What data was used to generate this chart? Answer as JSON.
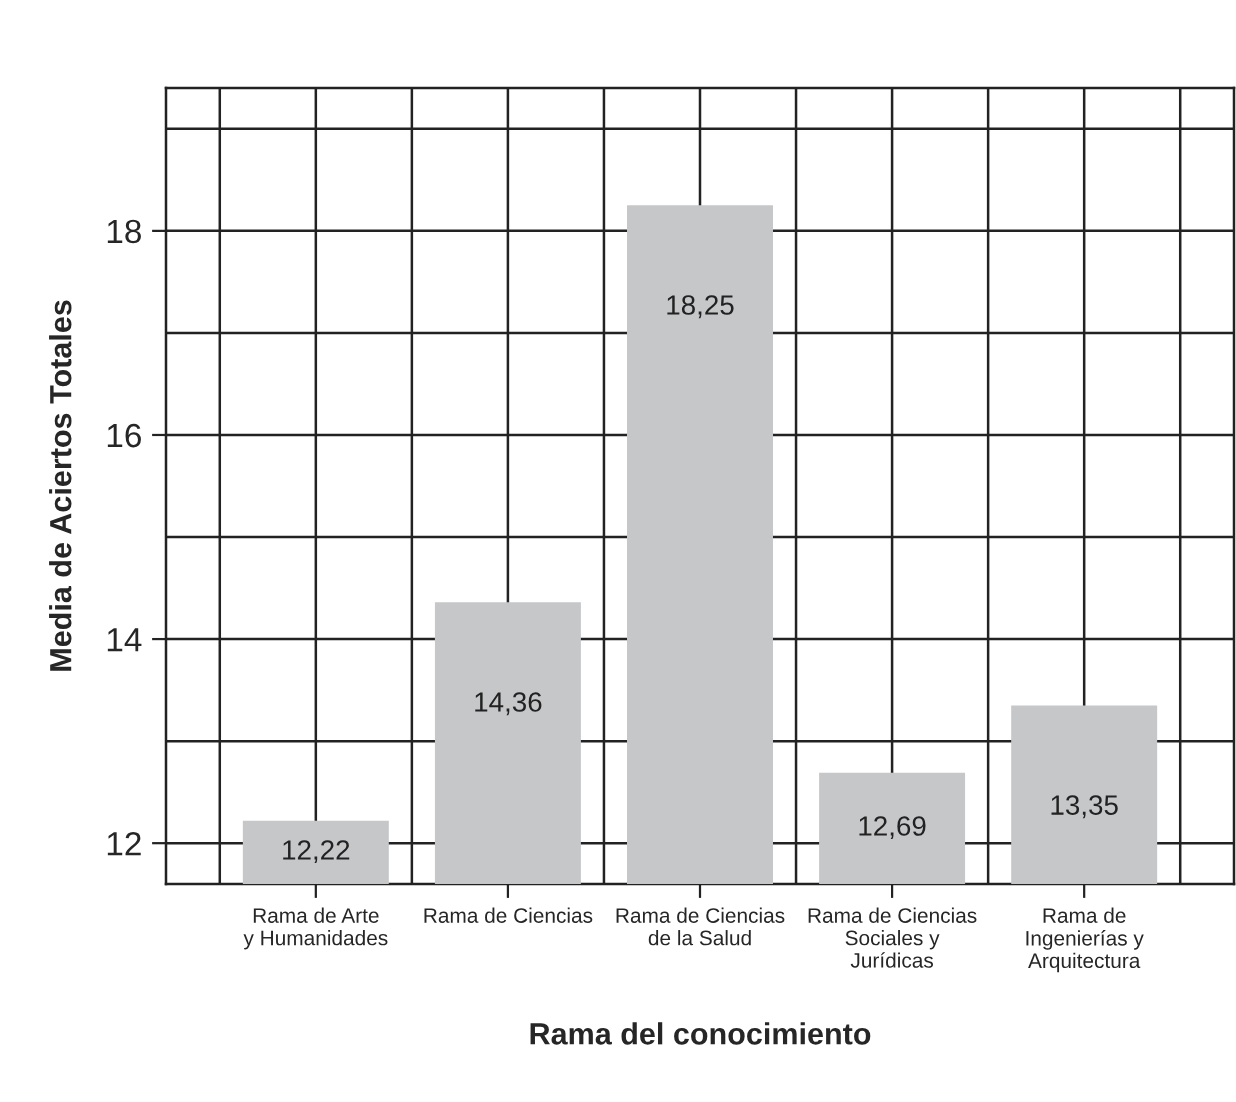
{
  "chart_data": {
    "type": "bar",
    "xlabel": "Rama del conocimiento",
    "ylabel": "Media de Aciertos Totales",
    "categories": [
      "Rama de Arte\ny Humanidades",
      "Rama de Ciencias",
      "Rama de Ciencias\nde la Salud",
      "Rama de Ciencias\nSociales y\nJurídicas",
      "Rama de\nIngenierías y\nArquitectura"
    ],
    "values": [
      12.22,
      14.36,
      18.25,
      12.69,
      13.35
    ],
    "value_labels": [
      "12,22",
      "14,36",
      "18,25",
      "12,69",
      "13,35"
    ],
    "color": "#c6c7c9",
    "ylim": [
      11.6,
      19.4
    ],
    "yticks": [
      12,
      14,
      16,
      18
    ],
    "grid": true
  }
}
